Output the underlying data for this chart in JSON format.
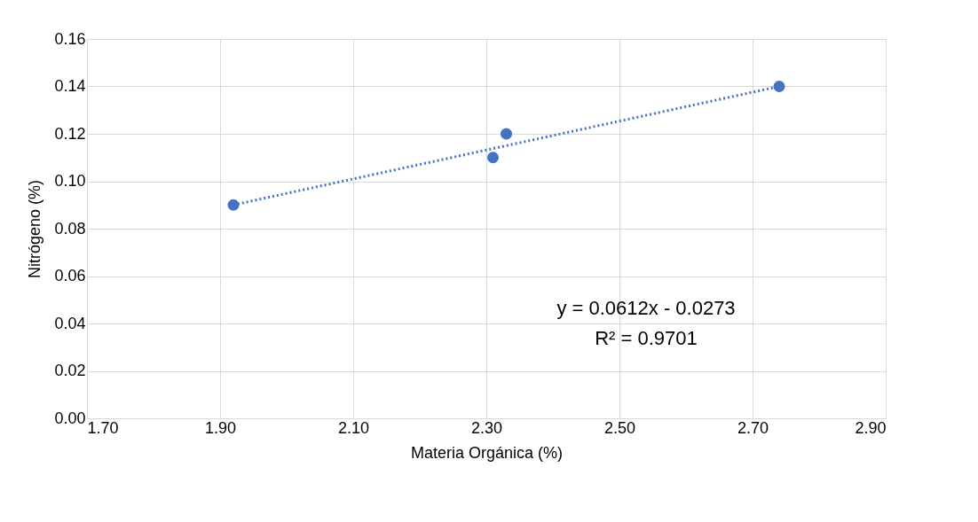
{
  "chart_data": {
    "type": "scatter",
    "xlabel": "Materia Orgánica (%)",
    "ylabel": "Nitrógeno (%)",
    "series": [
      {
        "color": "#4472c4",
        "x": [
          1.92,
          2.31,
          2.33,
          2.74
        ],
        "values": [
          0.09,
          0.11,
          0.12,
          0.14
        ],
        "marker": "circle"
      },
      {
        "type": "line",
        "color": "#4472c4",
        "x": [
          1.92,
          2.74
        ],
        "values": [
          0.09,
          0.14
        ],
        "line_style": "dotted"
      }
    ],
    "annotations": [
      "y = 0.0612x - 0.0273",
      "R² = 0.9701"
    ],
    "xlim": [
      1.7,
      2.9
    ],
    "xticks": [
      {
        "value": 1.7,
        "label": "1.70"
      },
      {
        "value": 1.9,
        "label": "1.90"
      },
      {
        "value": 2.1,
        "label": "2.10"
      },
      {
        "value": 2.3,
        "label": "2.30"
      },
      {
        "value": 2.5,
        "label": "2.50"
      },
      {
        "value": 2.7,
        "label": "2.70"
      },
      {
        "value": 2.9,
        "label": "2.90"
      }
    ],
    "ylim": [
      0,
      0.16
    ],
    "yticks": [
      {
        "value": 0,
        "label": "0.00"
      },
      {
        "value": 0.02,
        "label": "0.02"
      },
      {
        "value": 0.04,
        "label": "0.04"
      },
      {
        "value": 0.06,
        "label": "0.06"
      },
      {
        "value": 0.08,
        "label": "0.08"
      },
      {
        "value": 0.1,
        "label": "0.10"
      },
      {
        "value": 0.12,
        "label": "0.12"
      },
      {
        "value": 0.14,
        "label": "0.14"
      },
      {
        "value": 0.16,
        "label": "0.16"
      }
    ],
    "grid": true
  }
}
